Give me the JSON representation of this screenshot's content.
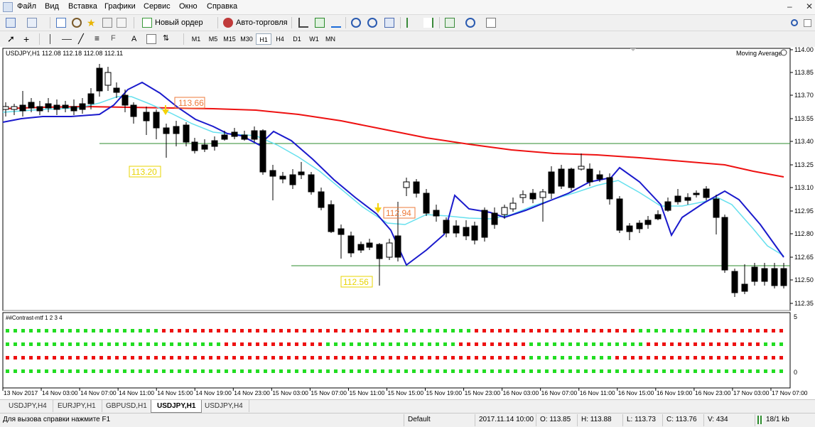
{
  "menu": [
    "Файл",
    "Вид",
    "Вставка",
    "Графики",
    "Сервис",
    "Окно",
    "Справка"
  ],
  "toolbar": {
    "new_order": "Новый ордер",
    "auto_trading": "Авто-торговля",
    "timeframes": [
      "M1",
      "M5",
      "M15",
      "M30",
      "H1",
      "H4",
      "D1",
      "W1",
      "MN"
    ],
    "active_timeframe": "H1",
    "text_tool": "A"
  },
  "chart": {
    "header": "USDJPY,H1  112.08 112.18 112.08 112.11",
    "indicator_label": "Moving Average",
    "price_levels": [
      "114.00",
      "113.85",
      "113.70",
      "113.55",
      "113.40",
      "113.25",
      "113.10",
      "112.95",
      "112.80",
      "112.65",
      "112.50",
      "112.35"
    ],
    "current_price": "112.11",
    "annotations": {
      "a1": "113.66",
      "a2": "113.20",
      "a3": "112.94",
      "a4": "112.56"
    },
    "sub_window": {
      "label": "##Contrast-mtf 1 2 3 4",
      "levels": [
        "5",
        "0"
      ]
    },
    "time_labels": [
      "13 Nov 2017",
      "14 Nov 03:00",
      "14 Nov 07:00",
      "14 Nov 11:00",
      "14 Nov 15:00",
      "14 Nov 19:00",
      "14 Nov 23:00",
      "15 Nov 03:00",
      "15 Nov 07:00",
      "15 Nov 11:00",
      "15 Nov 15:00",
      "15 Nov 19:00",
      "15 Nov 23:00",
      "16 Nov 03:00",
      "16 Nov 07:00",
      "16 Nov 11:00",
      "16 Nov 15:00",
      "16 Nov 19:00",
      "16 Nov 23:00",
      "17 Nov 03:00",
      "17 Nov 07:00"
    ],
    "colors": {
      "ma_slow": "#ee1111",
      "ma_mid": "#1a1acc",
      "ma_fast": "#66e0ee",
      "level_line": "#2e8b2e",
      "dot_green": "#22dd22",
      "dot_red": "#ee1111"
    }
  },
  "tabs": [
    "USDJPY,H4",
    "EURJPY,H1",
    "GBPUSD,H1",
    "USDJPY,H1",
    "USDJPY,H4"
  ],
  "active_tab": "USDJPY,H1",
  "status": {
    "help": "Для вызова справки нажмите F1",
    "profile": "Default",
    "datetime": "2017.11.14 10:00",
    "open": "O: 113.85",
    "high": "H: 113.88",
    "low": "L: 113.73",
    "close": "C: 113.76",
    "volume": "V: 434",
    "traffic": "18/1 kb"
  }
}
